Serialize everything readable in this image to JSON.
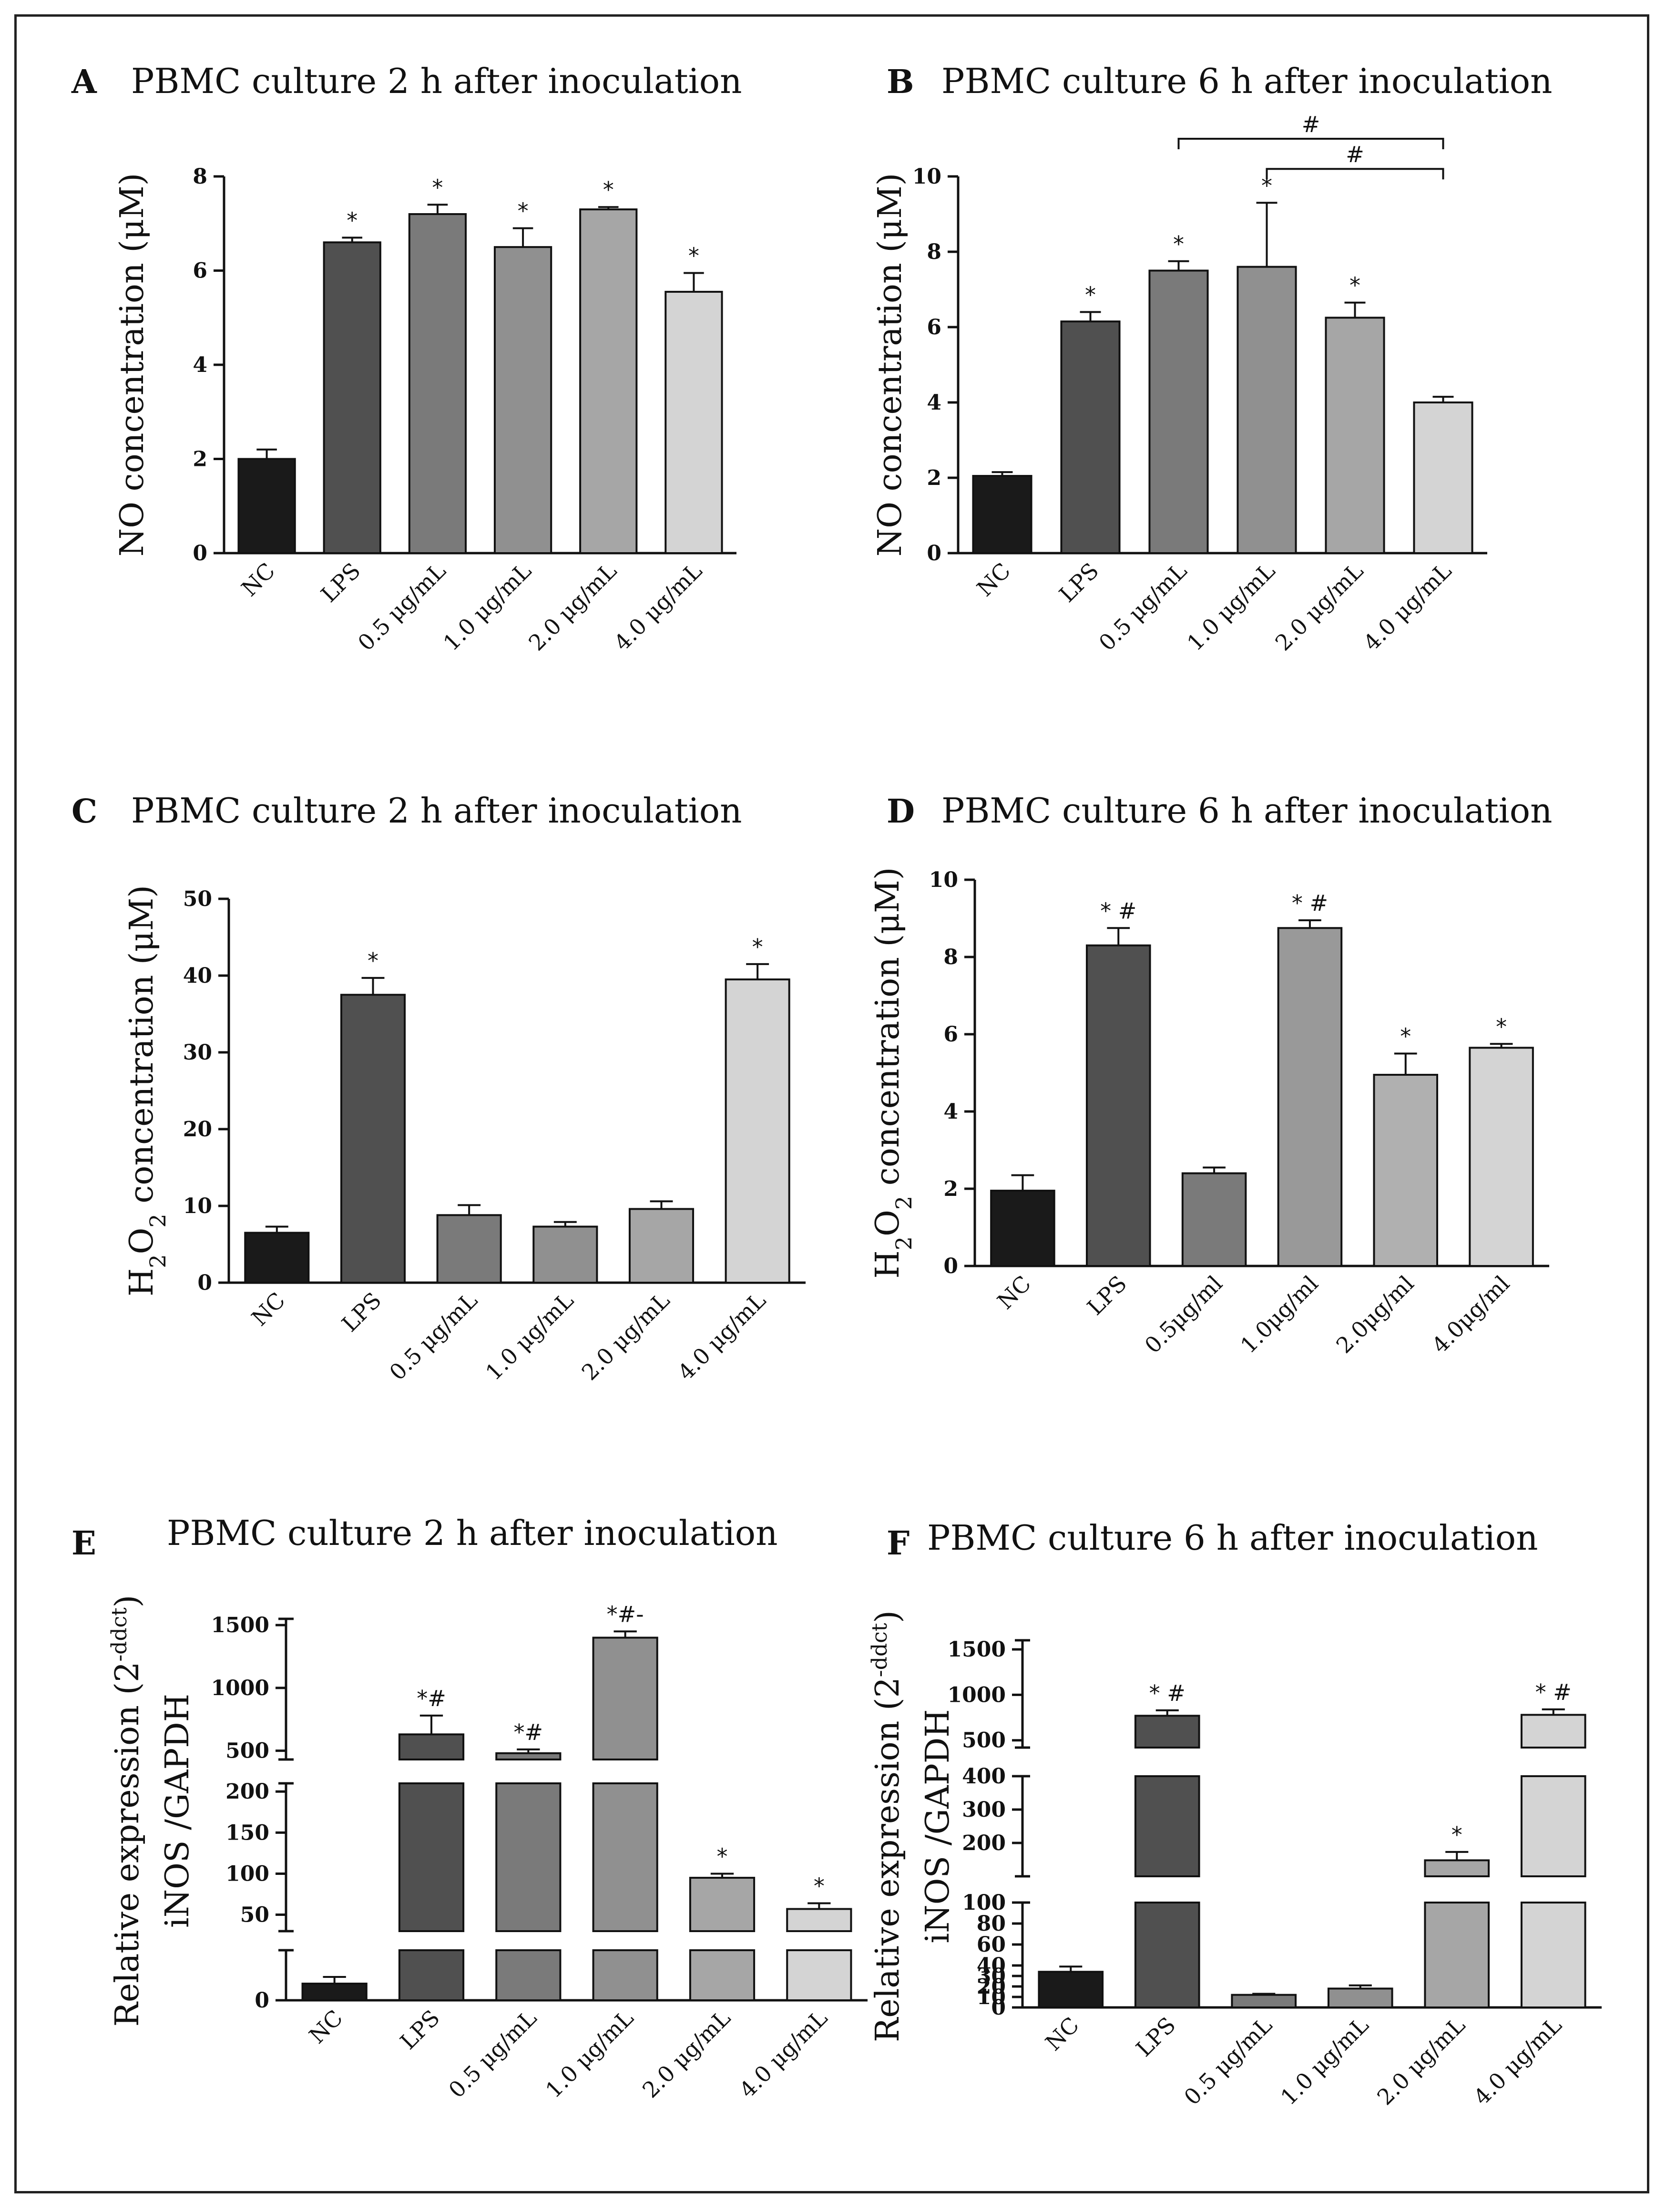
{
  "chart_data": [
    {
      "id": "A",
      "type": "bar",
      "letter": "A",
      "title": "PBMC culture 2 h after inoculation",
      "ylabel": "NO concentration (μM)",
      "categories": [
        "NC",
        "LPS",
        "0.5 μg/mL",
        "1.0 μg/mL",
        "2.0 μg/mL",
        "4.0 μg/mL"
      ],
      "values": [
        2.0,
        6.6,
        7.2,
        6.5,
        7.3,
        5.55
      ],
      "errors": [
        0.2,
        0.1,
        0.2,
        0.4,
        0.05,
        0.4
      ],
      "significance": [
        "",
        "*",
        "*",
        "*",
        "*",
        "*"
      ],
      "ylim": [
        0,
        8
      ],
      "yticks": [
        "0",
        "2",
        "4",
        "6",
        "8"
      ],
      "colors": [
        "#1a1a1a",
        "#505050",
        "#7a7a7a",
        "#909090",
        "#a6a6a6",
        "#d4d4d4"
      ],
      "brackets": []
    },
    {
      "id": "B",
      "type": "bar",
      "letter": "B",
      "title": "PBMC culture 6 h after inoculation",
      "ylabel": "NO concentration (μM)",
      "categories": [
        "NC",
        "LPS",
        "0.5 μg/mL",
        "1.0 μg/mL",
        "2.0 μg/mL",
        "4.0 μg/mL"
      ],
      "values": [
        2.05,
        6.15,
        7.5,
        7.6,
        6.25,
        4.0
      ],
      "errors": [
        0.1,
        0.25,
        0.25,
        1.7,
        0.4,
        0.15
      ],
      "significance": [
        "",
        "*",
        "*",
        "*",
        "*",
        ""
      ],
      "ylim": [
        0,
        10
      ],
      "yticks": [
        "0",
        "2",
        "4",
        "6",
        "8",
        "10"
      ],
      "colors": [
        "#1a1a1a",
        "#505050",
        "#7a7a7a",
        "#909090",
        "#a6a6a6",
        "#d4d4d4"
      ],
      "brackets": [
        {
          "from": 2,
          "to": 5,
          "label": "#",
          "level": 11.0
        },
        {
          "from": 3,
          "to": 5,
          "label": "#",
          "level": 10.2
        }
      ]
    },
    {
      "id": "C",
      "type": "bar",
      "letter": "C",
      "title": "PBMC culture 2 h after inoculation",
      "ylabel": "H2O2 concentration (μM)",
      "categories": [
        "NC",
        "LPS",
        "0.5 μg/mL",
        "1.0 μg/mL",
        "2.0 μg/mL",
        "4.0 μg/mL"
      ],
      "values": [
        6.5,
        37.5,
        8.8,
        7.3,
        9.6,
        39.5
      ],
      "errors": [
        0.8,
        2.2,
        1.3,
        0.6,
        1.0,
        2.0
      ],
      "significance": [
        "",
        "*",
        "",
        "",
        "",
        "*"
      ],
      "ylim": [
        0,
        50
      ],
      "yticks": [
        "0",
        "10",
        "20",
        "30",
        "40",
        "50"
      ],
      "colors": [
        "#1a1a1a",
        "#505050",
        "#7a7a7a",
        "#909090",
        "#a6a6a6",
        "#d4d4d4"
      ],
      "brackets": []
    },
    {
      "id": "D",
      "type": "bar",
      "letter": "D",
      "title": "PBMC culture 6 h after inoculation",
      "ylabel": "H2O2 concentration (μM)",
      "categories": [
        "NC",
        "LPS",
        "0.5μg/ml",
        "1.0μg/ml",
        "2.0μg/ml",
        "4.0μg/ml"
      ],
      "values": [
        1.95,
        8.3,
        2.4,
        8.75,
        4.95,
        5.65
      ],
      "errors": [
        0.4,
        0.45,
        0.15,
        0.2,
        0.55,
        0.1
      ],
      "significance": [
        "",
        "* #",
        "",
        "* #",
        "*",
        "*"
      ],
      "ylim": [
        0,
        10
      ],
      "yticks": [
        "0",
        "2",
        "4",
        "6",
        "8",
        "10"
      ],
      "colors": [
        "#1a1a1a",
        "#505050",
        "#7a7a7a",
        "#999999",
        "#b0b0b0",
        "#d4d4d4"
      ],
      "brackets": []
    },
    {
      "id": "E",
      "type": "bar",
      "letter": "E",
      "title": "PBMC culture 2 h after inoculation",
      "ylabel_line1": "Relative expression (2",
      "ylabel_sup": "-ddct",
      "ylabel_line1_end": ")",
      "ylabel_line2": "iNOS /GAPDH",
      "categories": [
        "NC",
        "LPS",
        "0.5 μg/mL",
        "1.0 μg/mL",
        "2.0 μg/mL",
        "4.0 μg/mL"
      ],
      "values": [
        10,
        630,
        480,
        1400,
        95,
        57
      ],
      "errors": [
        4,
        150,
        30,
        50,
        5,
        7
      ],
      "significance": [
        "",
        "*#",
        "*#",
        "*#-",
        "*",
        "*"
      ],
      "broken_axis": [
        {
          "range": [
            0,
            30
          ],
          "ticks": [
            0
          ],
          "tick_labels": [
            "0"
          ]
        },
        {
          "range": [
            30,
            210
          ],
          "ticks": [
            50,
            100,
            150,
            200
          ],
          "tick_labels": [
            "50",
            "100",
            "150",
            "200"
          ]
        },
        {
          "range": [
            430,
            1550
          ],
          "ticks": [
            500,
            1000,
            1500
          ],
          "tick_labels": [
            "500",
            "1000",
            "1500"
          ]
        }
      ],
      "colors": [
        "#1a1a1a",
        "#505050",
        "#7a7a7a",
        "#909090",
        "#a6a6a6",
        "#d4d4d4"
      ],
      "brackets": []
    },
    {
      "id": "F",
      "type": "bar",
      "letter": "F",
      "title": "PBMC culture 6 h after inoculation",
      "ylabel_line1": "Relative expression (2",
      "ylabel_sup": "-ddct",
      "ylabel_line1_end": ")",
      "ylabel_line2": "iNOS /GAPDH",
      "categories": [
        "NC",
        "LPS",
        "0.5 μg/mL",
        "1.0 μg/mL",
        "2.0 μg/mL",
        "4.0 μg/mL"
      ],
      "values": [
        34,
        770,
        12,
        18,
        148,
        780
      ],
      "errors": [
        5,
        60,
        1,
        3,
        25,
        60
      ],
      "significance": [
        "",
        "* #",
        "",
        "",
        "*",
        "* #"
      ],
      "broken_axis": [
        {
          "range": [
            0,
            100
          ],
          "ticks": [
            0,
            10,
            20,
            30,
            40,
            60,
            80,
            100
          ],
          "tick_labels": [
            "0",
            "10",
            "20",
            "30",
            "40",
            "60",
            "80",
            "100"
          ]
        },
        {
          "range": [
            100,
            400
          ],
          "ticks": [
            100,
            200,
            300,
            400
          ],
          "tick_labels": [
            "100",
            "200",
            "300",
            "400"
          ]
        },
        {
          "range": [
            420,
            1600
          ],
          "ticks": [
            500,
            1000,
            1500
          ],
          "tick_labels": [
            "500",
            "1000",
            "1500"
          ]
        }
      ],
      "colors": [
        "#1a1a1a",
        "#505050",
        "#7a7a7a",
        "#909090",
        "#a6a6a6",
        "#d4d4d4"
      ],
      "brackets": []
    }
  ]
}
